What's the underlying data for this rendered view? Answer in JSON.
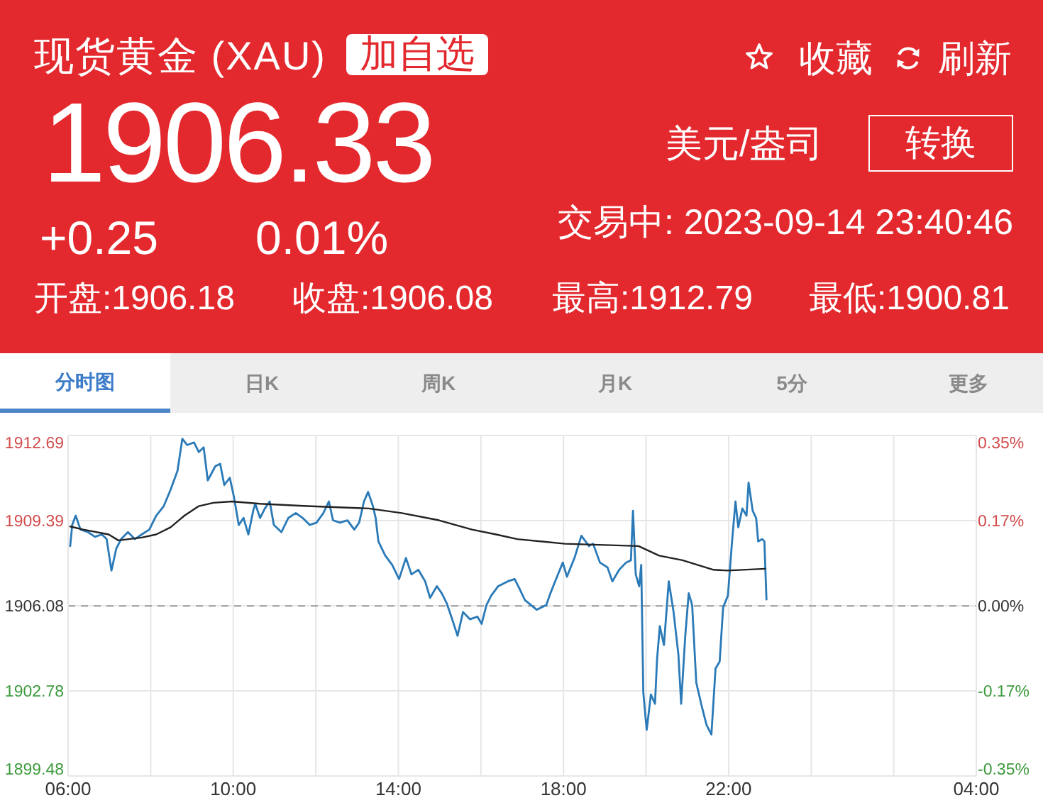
{
  "chart_data": [
    {
      "type": "other",
      "title": "现货黄金 (XAU)",
      "annotations": [
        "加自选",
        "收藏",
        "刷新",
        "1906.33",
        "美元/盎司",
        "转换",
        "+0.25",
        "0.01%",
        "交易中: 2023-09-14 23:40:46",
        "开盘:1906.18",
        "收盘:1906.08",
        "最高:1912.79",
        "最低:1900.81",
        "分时图",
        "日K",
        "周K",
        "月K",
        "5分",
        "更多"
      ]
    },
    {
      "type": "line",
      "xlim": [
        "2023-09-14T06:00",
        "2023-09-15T04:00"
      ],
      "xticks": [
        {
          "value": "2023-09-14T06:00",
          "label": "06:00"
        },
        {
          "value": "2023-09-14T08:00",
          "label": null
        },
        {
          "value": "2023-09-14T10:00",
          "label": "10:00"
        },
        {
          "value": "2023-09-14T12:00",
          "label": null
        },
        {
          "value": "2023-09-14T14:00",
          "label": "14:00"
        },
        {
          "value": "2023-09-14T16:00",
          "label": null
        },
        {
          "value": "2023-09-14T18:00",
          "label": "18:00"
        },
        {
          "value": "2023-09-14T20:00",
          "label": null
        },
        {
          "value": "2023-09-14T22:00",
          "label": "22:00"
        },
        {
          "value": "2023-09-15T00:00",
          "label": null
        },
        {
          "value": "2023-09-15T02:00",
          "label": null
        },
        {
          "value": "2023-09-15T04:00",
          "label": "04:00"
        }
      ],
      "ylim": [
        1899.48,
        1912.69
      ],
      "yticks": [
        1899.48,
        1902.78,
        1906.08,
        1909.39,
        1912.69
      ],
      "y2lim": [
        -0.347,
        0.347
      ],
      "y2ticks": [
        {
          "value": -0.347,
          "label": "-0.35%"
        },
        {
          "value": -0.173,
          "label": "-0.17%"
        },
        {
          "value": 0,
          "label": "0.00%"
        },
        {
          "value": 0.173,
          "label": "0.17%"
        },
        {
          "value": 0.347,
          "label": "0.35%"
        }
      ],
      "grid": true,
      "ref_lines": [
        {
          "axis": "y",
          "value": 1906.08,
          "color": "#999999",
          "line_style": "dashed"
        }
      ],
      "series": [
        {
          "color": "#2a7ab8",
          "x": [
            "2023-09-14T06:03",
            "2023-09-14T06:06",
            "2023-09-14T06:11",
            "2023-09-14T06:18",
            "2023-09-14T06:29",
            "2023-09-14T06:39",
            "2023-09-14T06:49",
            "2023-09-14T06:56",
            "2023-09-14T07:03",
            "2023-09-14T07:10",
            "2023-09-14T07:17",
            "2023-09-14T07:27",
            "2023-09-14T07:37",
            "2023-09-14T07:47",
            "2023-09-14T07:58",
            "2023-09-14T08:08",
            "2023-09-14T08:19",
            "2023-09-14T08:29",
            "2023-09-14T08:39",
            "2023-09-14T08:46",
            "2023-09-14T08:53",
            "2023-09-14T09:03",
            "2023-09-14T09:10",
            "2023-09-14T09:17",
            "2023-09-14T09:23",
            "2023-09-14T09:34",
            "2023-09-14T09:41",
            "2023-09-14T09:47",
            "2023-09-14T09:55",
            "2023-09-14T10:01",
            "2023-09-14T10:08",
            "2023-09-14T10:15",
            "2023-09-14T10:22",
            "2023-09-14T10:29",
            "2023-09-14T10:32",
            "2023-09-14T10:39",
            "2023-09-14T10:46",
            "2023-09-14T10:53",
            "2023-09-14T10:59",
            "2023-09-14T11:10",
            "2023-09-14T11:20",
            "2023-09-14T11:31",
            "2023-09-14T11:41",
            "2023-09-14T11:51",
            "2023-09-14T12:01",
            "2023-09-14T12:11",
            "2023-09-14T12:19",
            "2023-09-14T12:25",
            "2023-09-14T12:35",
            "2023-09-14T12:46",
            "2023-09-14T12:56",
            "2023-09-14T13:03",
            "2023-09-14T13:10",
            "2023-09-14T13:16",
            "2023-09-14T13:23",
            "2023-09-14T13:27",
            "2023-09-14T13:31",
            "2023-09-14T13:41",
            "2023-09-14T13:51",
            "2023-09-14T14:01",
            "2023-09-14T14:11",
            "2023-09-14T14:19",
            "2023-09-14T14:29",
            "2023-09-14T14:39",
            "2023-09-14T14:46",
            "2023-09-14T14:56",
            "2023-09-14T15:03",
            "2023-09-14T15:10",
            "2023-09-14T15:17",
            "2023-09-14T15:26",
            "2023-09-14T15:34",
            "2023-09-14T15:44",
            "2023-09-14T15:55",
            "2023-09-14T16:01",
            "2023-09-14T16:08",
            "2023-09-14T16:15",
            "2023-09-14T16:25",
            "2023-09-14T16:39",
            "2023-09-14T16:49",
            "2023-09-14T16:56",
            "2023-09-14T17:04",
            "2023-09-14T17:21",
            "2023-09-14T17:35",
            "2023-09-14T17:41",
            "2023-09-14T17:52",
            "2023-09-14T17:59",
            "2023-09-14T18:05",
            "2023-09-14T18:16",
            "2023-09-14T18:26",
            "2023-09-14T18:37",
            "2023-09-14T18:43",
            "2023-09-14T18:53",
            "2023-09-14T19:04",
            "2023-09-14T19:11",
            "2023-09-14T19:21",
            "2023-09-14T19:31",
            "2023-09-14T19:38",
            "2023-09-14T19:41",
            "2023-09-14T19:45",
            "2023-09-14T19:50",
            "2023-09-14T19:53",
            "2023-09-14T19:56",
            "2023-09-14T19:59",
            "2023-09-14T20:01",
            "2023-09-14T20:07",
            "2023-09-14T20:13",
            "2023-09-14T20:16",
            "2023-09-14T20:20",
            "2023-09-14T20:26",
            "2023-09-14T20:33",
            "2023-09-14T20:40",
            "2023-09-14T20:47",
            "2023-09-14T20:51",
            "2023-09-14T20:57",
            "2023-09-14T21:02",
            "2023-09-14T21:07",
            "2023-09-14T21:13",
            "2023-09-14T21:21",
            "2023-09-14T21:28",
            "2023-09-14T21:35",
            "2023-09-14T21:38",
            "2023-09-14T21:41",
            "2023-09-14T21:47",
            "2023-09-14T21:52",
            "2023-09-14T21:59",
            "2023-09-14T22:05",
            "2023-09-14T22:10",
            "2023-09-14T22:14",
            "2023-09-14T22:20",
            "2023-09-14T22:26",
            "2023-09-14T22:29",
            "2023-09-14T22:35",
            "2023-09-14T22:40",
            "2023-09-14T22:43",
            "2023-09-14T22:49",
            "2023-09-14T22:52",
            "2023-09-14T22:55"
          ],
          "values": [
            1908.4,
            1909.22,
            1909.58,
            1909.04,
            1908.94,
            1908.76,
            1908.85,
            1908.67,
            1907.45,
            1908.3,
            1908.67,
            1908.94,
            1908.67,
            1908.85,
            1909.04,
            1909.58,
            1909.95,
            1910.59,
            1911.32,
            1912.56,
            1912.32,
            1912.42,
            1912.05,
            1912.23,
            1910.95,
            1911.5,
            1911.59,
            1910.77,
            1911.05,
            1910.31,
            1909.22,
            1909.49,
            1908.85,
            1909.77,
            1910.04,
            1909.49,
            1909.86,
            1910.13,
            1909.22,
            1908.94,
            1909.49,
            1909.68,
            1909.49,
            1909.22,
            1909.31,
            1909.68,
            1910.13,
            1909.4,
            1909.31,
            1909.4,
            1909.04,
            1909.31,
            1910.13,
            1910.5,
            1909.95,
            1909.49,
            1908.58,
            1908.03,
            1907.67,
            1907.12,
            1907.94,
            1907.3,
            1907.48,
            1907.03,
            1906.39,
            1906.84,
            1906.57,
            1906.2,
            1905.66,
            1904.92,
            1905.84,
            1905.56,
            1905.66,
            1905.38,
            1906.11,
            1906.48,
            1906.84,
            1907.03,
            1907.12,
            1906.75,
            1906.3,
            1905.93,
            1906.11,
            1906.57,
            1907.3,
            1907.76,
            1907.21,
            1907.94,
            1908.8,
            1908.4,
            1908.49,
            1907.76,
            1907.57,
            1907.03,
            1907.48,
            1907.76,
            1907.85,
            1909.77,
            1907.3,
            1906.84,
            1907.67,
            1902.73,
            1901.82,
            1901.27,
            1902.64,
            1902.28,
            1904.01,
            1905.29,
            1904.56,
            1907.03,
            1905.84,
            1904.19,
            1902.28,
            1904.92,
            1906.57,
            1906.11,
            1903.1,
            1902.18,
            1901.45,
            1901.09,
            1902.37,
            1903.65,
            1903.92,
            1906.02,
            1906.48,
            1908.58,
            1910.13,
            1909.13,
            1909.86,
            1909.58,
            1910.86,
            1909.77,
            1909.49,
            1908.58,
            1908.67,
            1908.58,
            1906.33
          ]
        },
        {
          "color": "#222222",
          "x": [
            "2023-09-14T06:03",
            "2023-09-14T06:22",
            "2023-09-14T06:59",
            "2023-09-14T07:13",
            "2023-09-14T07:47",
            "2023-09-14T08:08",
            "2023-09-14T08:29",
            "2023-09-14T08:49",
            "2023-09-14T09:10",
            "2023-09-14T09:31",
            "2023-09-14T09:58",
            "2023-09-14T10:39",
            "2023-09-14T11:47",
            "2023-09-14T13:17",
            "2023-09-14T14:05",
            "2023-09-14T14:59",
            "2023-09-14T15:47",
            "2023-09-14T16:22",
            "2023-09-14T16:53",
            "2023-09-14T18:02",
            "2023-09-14T19:49",
            "2023-09-14T20:19",
            "2023-09-14T20:53",
            "2023-09-14T21:38",
            "2023-09-14T21:59",
            "2023-09-14T22:53"
          ],
          "values": [
            1909.16,
            1909.04,
            1908.85,
            1908.62,
            1908.73,
            1908.85,
            1909.13,
            1909.58,
            1909.95,
            1910.08,
            1910.13,
            1910.04,
            1909.95,
            1909.86,
            1909.68,
            1909.4,
            1909.04,
            1908.85,
            1908.67,
            1908.49,
            1908.4,
            1908.03,
            1907.85,
            1907.48,
            1907.45,
            1907.52
          ]
        }
      ]
    }
  ]
}
